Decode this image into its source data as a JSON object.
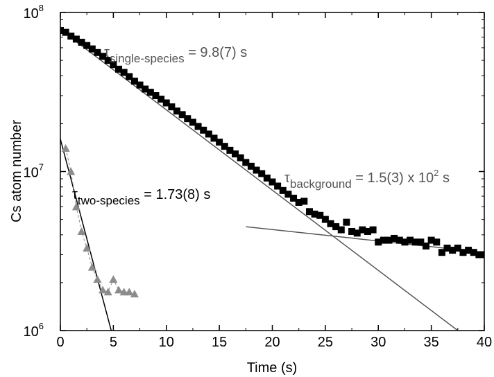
{
  "chart_data": {
    "type": "scatter",
    "xlabel": "Time (s)",
    "ylabel": "Cs atom number",
    "xlim": [
      0,
      40
    ],
    "ylim": [
      1000000,
      100000000
    ],
    "yscale": "log",
    "grid": false,
    "x_ticks": [
      0,
      5,
      10,
      15,
      20,
      25,
      30,
      35,
      40
    ],
    "x_tick_labels": [
      "0",
      "5",
      "10",
      "15",
      "20",
      "25",
      "30",
      "35",
      "40"
    ],
    "y_ticks": [
      1000000,
      10000000,
      100000000
    ],
    "y_tick_labels": [
      {
        "base": "10",
        "exp": "6"
      },
      {
        "base": "10",
        "exp": "7"
      },
      {
        "base": "10",
        "exp": "8"
      }
    ],
    "annotations": {
      "single": {
        "tau": "τ",
        "sub": "single-species",
        "rest": " = 9.8(7) s"
      },
      "two": {
        "tau": "τ",
        "sub": "two-species",
        "rest": " = 1.73(8) s"
      },
      "background": {
        "tau": "τ",
        "sub": "background",
        "rest": " = 1.5(3) x 10",
        "sup": "2",
        "rest2": " s"
      }
    },
    "colors": {
      "single_species": "#000000",
      "two_species": "#8c8c8c",
      "fit_lines": "#555555"
    },
    "series": [
      {
        "marker": "square",
        "color": "#000000",
        "x": [
          0,
          0.5,
          1,
          1.5,
          2,
          2.5,
          3,
          3.5,
          4,
          4.5,
          5,
          5.5,
          6,
          6.5,
          7,
          7.5,
          8,
          8.5,
          9,
          9.5,
          10,
          10.5,
          11,
          11.5,
          12,
          12.5,
          13,
          13.5,
          14,
          14.5,
          15,
          15.5,
          16,
          16.5,
          17,
          17.5,
          18,
          18.5,
          19,
          19.5,
          20,
          20.5,
          21,
          21.5,
          22,
          22.5,
          23,
          23.5,
          24,
          24.5,
          25,
          25.5,
          26,
          26.5,
          27,
          27.5,
          28,
          28.5,
          29,
          29.5,
          30,
          30.5,
          31,
          31.5,
          32,
          32.5,
          33,
          33.5,
          34,
          34.5,
          35,
          35.5,
          36,
          36.5,
          37,
          37.5,
          38,
          38.5,
          39,
          39.5,
          40
        ],
        "y": [
          77000000,
          75000000,
          71000000,
          68000000,
          65000000,
          62000000,
          59000000,
          56000000,
          53000000,
          50000000,
          47000000,
          44000000,
          42000000,
          39500000,
          37000000,
          35000000,
          33000000,
          31500000,
          30000000,
          28500000,
          27000000,
          25500000,
          24000000,
          22800000,
          21500000,
          20400000,
          19200000,
          18200000,
          17200000,
          16200000,
          15300000,
          14400000,
          13600000,
          12900000,
          12200000,
          11400000,
          10800000,
          10200000,
          9700000,
          9100000,
          8600000,
          8100000,
          7600000,
          7200000,
          6800000,
          6400000,
          6500000,
          5600000,
          5400000,
          5300000,
          5000000,
          4700000,
          4500000,
          4300000,
          4800000,
          4200000,
          4100000,
          4300000,
          4200000,
          4300000,
          3600000,
          3700000,
          3700000,
          3800000,
          3700000,
          3600000,
          3700000,
          3600000,
          3600000,
          3400000,
          3700000,
          3600000,
          3100000,
          3300000,
          3200000,
          3300000,
          3100000,
          3200000,
          3100000,
          3000000,
          3000000
        ]
      },
      {
        "marker": "triangle",
        "color": "#8c8c8c",
        "connected": true,
        "x": [
          0.5,
          1,
          1.5,
          2,
          2.5,
          3,
          3.5,
          4,
          4.5,
          5,
          5.5,
          6,
          6.5,
          7
        ],
        "y": [
          14000000,
          10000000,
          6000000,
          4200000,
          3300000,
          2500000,
          2100000,
          1800000,
          1750000,
          2100000,
          1800000,
          1750000,
          1750000,
          1700000
        ]
      }
    ],
    "fit_lines": [
      {
        "x": [
          0,
          37.5
        ],
        "y": [
          78000000,
          1000000
        ]
      },
      {
        "x": [
          0,
          4.8
        ],
        "y": [
          16000000,
          1000000
        ]
      },
      {
        "x": [
          17.5,
          40
        ],
        "y": [
          4500000,
          3100000
        ]
      }
    ]
  }
}
